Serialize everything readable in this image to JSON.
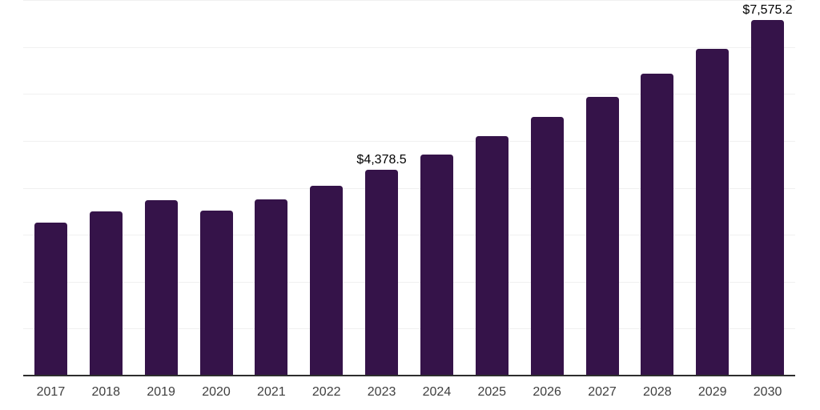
{
  "chart_data": {
    "type": "bar",
    "title": "",
    "xlabel": "",
    "ylabel": "",
    "categories": [
      "2017",
      "2018",
      "2019",
      "2020",
      "2021",
      "2022",
      "2023",
      "2024",
      "2025",
      "2026",
      "2027",
      "2028",
      "2029",
      "2030"
    ],
    "values": [
      3265,
      3505,
      3735,
      3510,
      3755,
      4045,
      4378.5,
      4715,
      5100,
      5515,
      5940,
      6425,
      6960,
      7575.2
    ],
    "data_labels": {
      "2023": "$4,378.5",
      "2030": "$7,575.2"
    },
    "ylim": [
      0,
      8000
    ],
    "gridline_interval": 1000,
    "grid": true,
    "legend": false,
    "y_axis_ticks_visible": false
  },
  "colors": {
    "bar": "#351349",
    "gridline": "#f0f0f0",
    "axis_line": "#2e2e2e",
    "tick_label": "#3f3f3f",
    "data_label": "#000000",
    "background": "#ffffff"
  }
}
